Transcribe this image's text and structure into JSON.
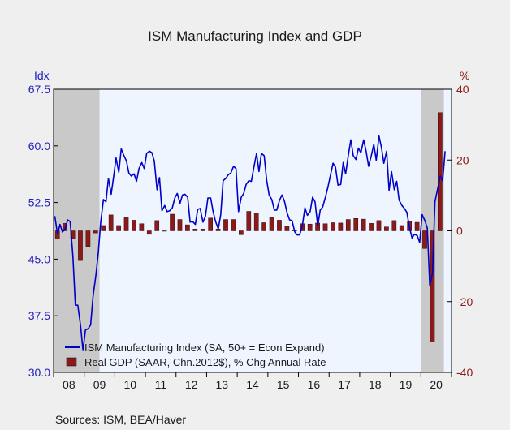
{
  "chart_data": {
    "type": "bar+line",
    "title": "ISM Manufacturing Index and GDP",
    "left_axis": {
      "unit_label": "Idx",
      "ylim": [
        30.0,
        67.5
      ],
      "ticks": [
        "30.0",
        "37.5",
        "45.0",
        "52.5",
        "60.0",
        "67.5"
      ],
      "tick_values": [
        30.0,
        37.5,
        45.0,
        52.5,
        60.0,
        67.5
      ],
      "color": "#1f1fbf"
    },
    "right_axis": {
      "unit_label": "%",
      "ylim": [
        -40,
        40
      ],
      "ticks": [
        "-40",
        "-20",
        "0",
        "20",
        "40"
      ],
      "tick_values": [
        -40,
        -20,
        0,
        20,
        40
      ],
      "color": "#8b1a1a"
    },
    "x_axis": {
      "range": [
        2008.0,
        2021.0
      ],
      "tick_labels": [
        "08",
        "09",
        "10",
        "11",
        "12",
        "13",
        "14",
        "15",
        "16",
        "17",
        "18",
        "19",
        "20"
      ],
      "tick_positions": [
        2008.5,
        2009.5,
        2010.5,
        2011.5,
        2012.5,
        2013.5,
        2014.5,
        2015.5,
        2016.5,
        2017.5,
        2018.5,
        2019.5,
        2020.5
      ]
    },
    "recession_bands": [
      [
        2008.0,
        2009.5
      ],
      [
        2020.0,
        2020.75
      ]
    ],
    "recession_color": "#c9c9c9",
    "background_color": "#eef5ff",
    "series": [
      {
        "name": "ISM Manufacturing Index (SA, 50+ = Econ Expand)",
        "type": "line",
        "axis": "left",
        "color": "#0000c8",
        "x": [
          2008.04,
          2008.13,
          2008.21,
          2008.29,
          2008.38,
          2008.46,
          2008.54,
          2008.63,
          2008.71,
          2008.79,
          2008.88,
          2008.96,
          2009.04,
          2009.13,
          2009.21,
          2009.29,
          2009.38,
          2009.46,
          2009.54,
          2009.63,
          2009.71,
          2009.79,
          2009.88,
          2009.96,
          2010.04,
          2010.13,
          2010.21,
          2010.29,
          2010.38,
          2010.46,
          2010.54,
          2010.63,
          2010.71,
          2010.79,
          2010.88,
          2010.96,
          2011.04,
          2011.13,
          2011.21,
          2011.29,
          2011.38,
          2011.46,
          2011.54,
          2011.63,
          2011.71,
          2011.79,
          2011.88,
          2011.96,
          2012.04,
          2012.13,
          2012.21,
          2012.29,
          2012.38,
          2012.46,
          2012.54,
          2012.63,
          2012.71,
          2012.79,
          2012.88,
          2012.96,
          2013.04,
          2013.13,
          2013.21,
          2013.29,
          2013.38,
          2013.46,
          2013.54,
          2013.63,
          2013.71,
          2013.79,
          2013.88,
          2013.96,
          2014.04,
          2014.13,
          2014.21,
          2014.29,
          2014.38,
          2014.46,
          2014.54,
          2014.63,
          2014.71,
          2014.79,
          2014.88,
          2014.96,
          2015.04,
          2015.13,
          2015.21,
          2015.29,
          2015.38,
          2015.46,
          2015.54,
          2015.63,
          2015.71,
          2015.79,
          2015.88,
          2015.96,
          2016.04,
          2016.13,
          2016.21,
          2016.29,
          2016.38,
          2016.46,
          2016.54,
          2016.63,
          2016.71,
          2016.79,
          2016.88,
          2016.96,
          2017.04,
          2017.13,
          2017.21,
          2017.29,
          2017.38,
          2017.46,
          2017.54,
          2017.63,
          2017.71,
          2017.79,
          2017.88,
          2017.96,
          2018.04,
          2018.13,
          2018.21,
          2018.29,
          2018.38,
          2018.46,
          2018.54,
          2018.63,
          2018.71,
          2018.79,
          2018.88,
          2018.96,
          2019.04,
          2019.13,
          2019.21,
          2019.29,
          2019.38,
          2019.46,
          2019.54,
          2019.63,
          2019.71,
          2019.79,
          2019.88,
          2019.96,
          2020.04,
          2020.13,
          2020.21,
          2020.29,
          2020.38,
          2020.46,
          2020.54,
          2020.63,
          2020.71,
          2020.79
        ],
        "values": [
          50.7,
          48.3,
          49.6,
          48.6,
          49.0,
          50.2,
          50.0,
          45.5,
          38.9,
          38.9,
          36.2,
          32.9,
          35.6,
          35.8,
          36.3,
          40.1,
          42.8,
          45.8,
          49.9,
          52.9,
          52.6,
          55.7,
          53.6,
          55.9,
          58.4,
          56.5,
          59.6,
          58.8,
          58.0,
          56.4,
          56.0,
          56.3,
          55.3,
          57.0,
          57.8,
          57.0,
          59.0,
          59.3,
          59.1,
          58.0,
          54.2,
          55.8,
          51.4,
          52.1,
          51.3,
          51.4,
          51.8,
          53.1,
          53.7,
          52.4,
          53.5,
          53.6,
          53.2,
          49.9,
          50.0,
          49.6,
          51.6,
          51.7,
          49.9,
          50.7,
          53.1,
          53.1,
          51.3,
          50.0,
          49.0,
          50.9,
          55.4,
          55.7,
          56.2,
          56.4,
          57.3,
          57.0,
          51.3,
          53.2,
          53.7,
          54.9,
          55.4,
          55.3,
          57.1,
          59.0,
          56.6,
          59.0,
          58.7,
          55.5,
          53.5,
          52.9,
          51.5,
          51.5,
          52.8,
          53.5,
          52.7,
          51.1,
          50.2,
          50.1,
          48.6,
          48.2,
          48.2,
          49.5,
          51.8,
          50.8,
          51.3,
          53.2,
          52.6,
          49.4,
          51.5,
          51.9,
          53.2,
          54.5,
          56.0,
          57.7,
          57.2,
          54.8,
          54.9,
          57.8,
          56.3,
          58.8,
          60.8,
          58.7,
          58.2,
          59.7,
          59.1,
          60.8,
          59.3,
          57.3,
          58.7,
          60.2,
          58.1,
          61.3,
          59.8,
          57.7,
          59.3,
          54.1,
          56.6,
          54.2,
          55.3,
          52.8,
          52.1,
          51.7,
          51.2,
          49.1,
          47.8,
          48.3,
          48.1,
          47.2,
          50.9,
          50.1,
          49.1,
          41.5,
          43.1,
          52.6,
          54.2,
          56.0,
          55.4,
          59.3
        ]
      },
      {
        "name": "Real GDP (SAAR, Chn.2012$), % Chg Annual Rate",
        "type": "bar",
        "axis": "right",
        "color": "#8b1a1a",
        "x": [
          2008.125,
          2008.375,
          2008.625,
          2008.875,
          2009.125,
          2009.375,
          2009.625,
          2009.875,
          2010.125,
          2010.375,
          2010.625,
          2010.875,
          2011.125,
          2011.375,
          2011.625,
          2011.875,
          2012.125,
          2012.375,
          2012.625,
          2012.875,
          2013.125,
          2013.375,
          2013.625,
          2013.875,
          2014.125,
          2014.375,
          2014.625,
          2014.875,
          2015.125,
          2015.375,
          2015.625,
          2015.875,
          2016.125,
          2016.375,
          2016.625,
          2016.875,
          2017.125,
          2017.375,
          2017.625,
          2017.875,
          2018.125,
          2018.375,
          2018.625,
          2018.875,
          2019.125,
          2019.375,
          2019.625,
          2019.875,
          2020.125,
          2020.375,
          2020.625
        ],
        "values": [
          -2.3,
          2.1,
          -2.1,
          -8.4,
          -4.4,
          -0.6,
          1.5,
          4.5,
          1.5,
          3.7,
          3.0,
          2.0,
          -1.0,
          2.9,
          -0.1,
          4.7,
          3.2,
          1.7,
          0.5,
          0.5,
          3.6,
          0.5,
          3.2,
          3.2,
          -1.1,
          5.5,
          5.0,
          2.3,
          3.8,
          3.0,
          1.3,
          0.1,
          2.0,
          1.9,
          2.2,
          2.0,
          2.3,
          2.2,
          3.2,
          3.5,
          3.3,
          2.1,
          2.9,
          1.1,
          2.9,
          1.5,
          2.6,
          2.4,
          -5.0,
          -31.4,
          33.4
        ]
      }
    ],
    "legend_position": "bottom-left",
    "source": "Sources:  ISM, BEA/Haver"
  }
}
